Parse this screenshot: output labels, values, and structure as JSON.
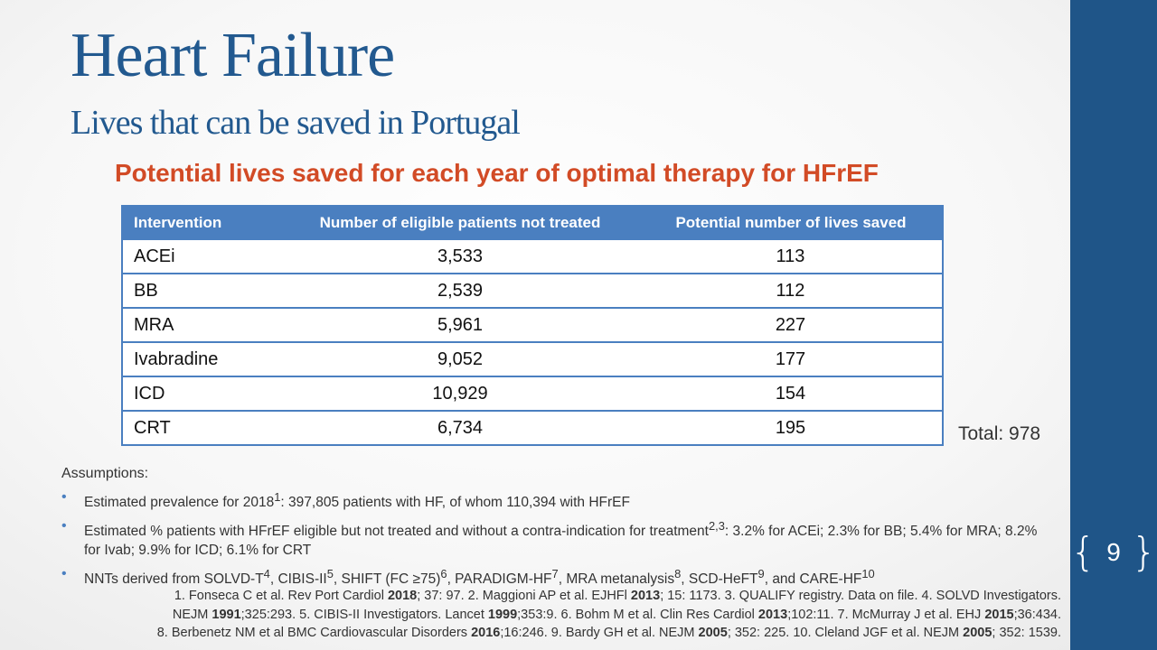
{
  "slide": {
    "title": "Heart Failure",
    "subtitle": "Lives that can be saved in Portugal",
    "heading": "Potential lives saved for each year of optimal therapy for HFrEF",
    "page_number": "9"
  },
  "table": {
    "headers": [
      "Intervention",
      "Number of eligible patients not treated",
      "Potential number of lives saved"
    ],
    "rows": [
      [
        "ACEi",
        "3,533",
        "113"
      ],
      [
        "BB",
        "2,539",
        "112"
      ],
      [
        "MRA",
        "5,961",
        "227"
      ],
      [
        "Ivabradine",
        "9,052",
        "177"
      ],
      [
        "ICD",
        "10,929",
        "154"
      ],
      [
        "CRT",
        "6,734",
        "195"
      ]
    ]
  },
  "total": "Total: 978",
  "assumptions": {
    "label": "Assumptions:",
    "bullets": [
      [
        "Estimated prevalence for 2018",
        "1",
        ": 397,805 patients with HF, of whom 110,394 with HFrEF"
      ],
      [
        "Estimated % patients with HFrEF eligible but not treated and without a contra-indication for treatment",
        "2,3",
        ": 3.2% for ACEi; 2.3% for BB; 5.4% for MRA; 8.2% for Ivab; 9.9% for ICD; 6.1% for CRT"
      ],
      [
        "NNTs derived from SOLVD-T",
        "4",
        ", CIBIS-II",
        "5",
        ", SHIFT (FC ≥75)",
        "6",
        ", PARADIGM-HF",
        "7",
        ", MRA metanalysis",
        "8",
        ", SCD-HeFT",
        "9",
        ", and CARE-HF",
        "10",
        ""
      ]
    ]
  },
  "references": [
    [
      "1. Fonseca C et al. Rev Port Cardiol ",
      "2018",
      "; 37: 97. 2. Maggioni AP et al. EJHFl ",
      "2013",
      "; 15: 1173. 3. QUALIFY registry. Data on file. 4. SOLVD Investigators."
    ],
    [
      "NEJM ",
      "1991",
      ";325:293. 5. CIBIS-II Investigators. Lancet ",
      "1999",
      ";353:9. 6. Bohm M et al. Clin Res Cardiol ",
      "2013",
      ";102:11. 7. McMurray J et al. EHJ ",
      "2015",
      ";36:434."
    ],
    [
      "8. Berbenetz NM et al BMC Cardiovascular Disorders ",
      "2016",
      ";16:246. 9. Bardy GH et al. NEJM ",
      "2005",
      "; 352: 225. 10. Cleland JGF et al. NEJM ",
      "2005",
      "; 352: 1539."
    ]
  ],
  "colors": {
    "title": "#22598f",
    "heading": "#d24b26",
    "table_header": "#4a7fc0",
    "side_band": "#1f5588"
  }
}
